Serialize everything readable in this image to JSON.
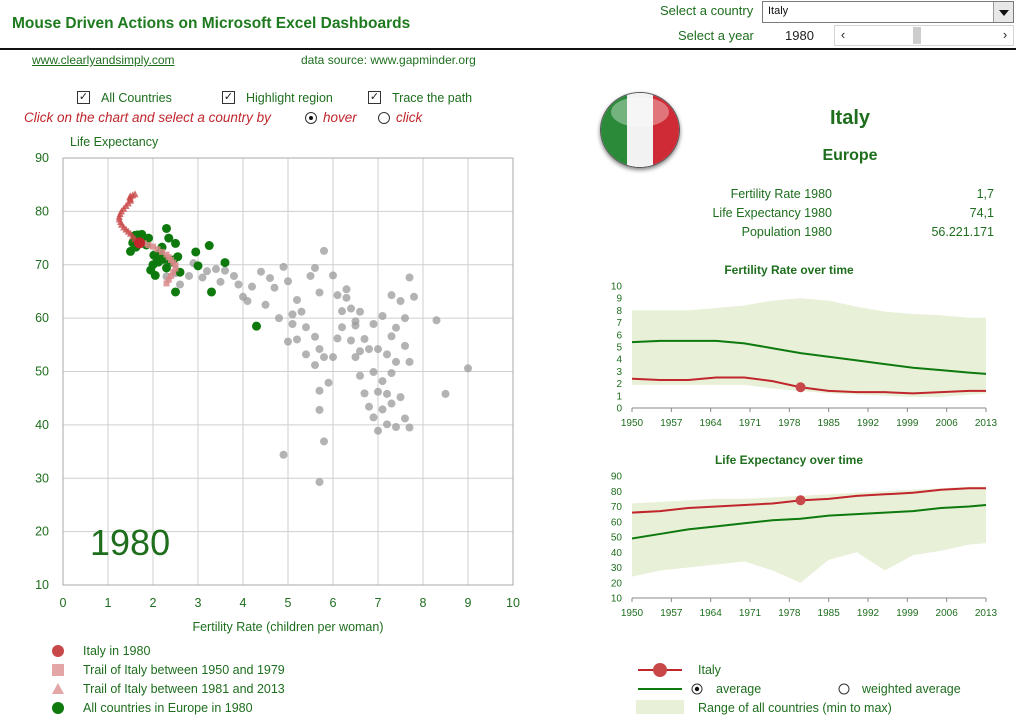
{
  "header": {
    "title": "Mouse Driven Actions on Microsoft Excel Dashboards",
    "select_country_label": "Select a country",
    "select_country_value": "Italy",
    "select_year_label": "Select a year",
    "select_year_value": "1980",
    "year_slider_position": 0.45
  },
  "links": {
    "site": "www.clearlyandsimply.com",
    "source": "data source: www.gapminder.org"
  },
  "options": {
    "all_countries": {
      "label": "All Countries",
      "checked": true
    },
    "highlight_region": {
      "label": "Highlight region",
      "checked": true
    },
    "trace_path": {
      "label": "Trace the path",
      "checked": true
    },
    "instruction": "Click on the chart and select a country by",
    "hover_label": "hover",
    "click_label": "click",
    "selected_mode": "hover"
  },
  "info": {
    "country": "Italy",
    "region": "Europe",
    "stats": [
      {
        "label": "Fertility Rate 1980",
        "value": "1,7"
      },
      {
        "label": "Life Expectancy 1980",
        "value": "74,1"
      },
      {
        "label": "Population 1980",
        "value": "56.221.171"
      }
    ]
  },
  "colors": {
    "accent_green": "#1e7a1e",
    "italy_red": "#c0262c",
    "europe_green": "#0e7a0e",
    "grey_dots": "#9a9a9a",
    "range_fill": "#e8f0d8"
  },
  "legend_main": {
    "items": [
      "Italy in 1980",
      "Trail of Italy between 1950 and 1979",
      "Trail of Italy between 1981 and 2013",
      "All countries in Europe in 1980"
    ]
  },
  "legend_small": {
    "italy": "Italy",
    "average": "average",
    "weighted_average": "weighted average",
    "range": "Range of all countries (min to max)",
    "selected": "average"
  },
  "chart_data": [
    {
      "type": "scatter",
      "title": "",
      "big_year_label": "1980",
      "xlabel": "Fertility Rate (children per woman)",
      "ylabel": "Life Expectancy",
      "xlim": [
        0,
        10
      ],
      "ylim": [
        10,
        90
      ],
      "xticks": [
        "0",
        "1",
        "2",
        "3",
        "4",
        "5",
        "6",
        "7",
        "8",
        "9",
        "10"
      ],
      "yticks": [
        "10",
        "20",
        "30",
        "40",
        "50",
        "60",
        "70",
        "80",
        "90"
      ],
      "grid": true,
      "series": [
        {
          "name": "Italy in 1980",
          "points": [
            [
              1.7,
              74.1
            ]
          ]
        },
        {
          "name": "Trail of Italy between 1950 and 1979",
          "points": [
            [
              2.3,
              66.5
            ],
            [
              2.35,
              67.2
            ],
            [
              2.4,
              67.9
            ],
            [
              2.45,
              68.6
            ],
            [
              2.5,
              69.3
            ],
            [
              2.5,
              69.9
            ],
            [
              2.45,
              70.4
            ],
            [
              2.4,
              70.9
            ],
            [
              2.35,
              71.4
            ],
            [
              2.3,
              71.9
            ],
            [
              2.2,
              72.4
            ],
            [
              2.1,
              72.9
            ],
            [
              2.0,
              73.4
            ],
            [
              1.9,
              73.7
            ],
            [
              1.8,
              74.0
            ]
          ]
        },
        {
          "name": "Trail of Italy between 1981 and 2013",
          "points": [
            [
              1.65,
              74.4
            ],
            [
              1.6,
              74.8
            ],
            [
              1.55,
              75.3
            ],
            [
              1.5,
              75.8
            ],
            [
              1.45,
              76.2
            ],
            [
              1.4,
              76.6
            ],
            [
              1.35,
              77.0
            ],
            [
              1.3,
              77.5
            ],
            [
              1.28,
              78.0
            ],
            [
              1.25,
              78.5
            ],
            [
              1.25,
              79.0
            ],
            [
              1.27,
              79.5
            ],
            [
              1.3,
              80.0
            ],
            [
              1.35,
              80.5
            ],
            [
              1.4,
              81.0
            ],
            [
              1.45,
              81.5
            ],
            [
              1.5,
              82.0
            ],
            [
              1.5,
              82.3
            ],
            [
              1.48,
              82.6
            ],
            [
              1.5,
              82.8
            ],
            [
              1.55,
              83.0
            ],
            [
              1.6,
              83.2
            ]
          ]
        },
        {
          "name": "All countries in Europe in 1980",
          "points": [
            [
              1.5,
              72.5
            ],
            [
              1.55,
              74.1
            ],
            [
              1.6,
              75.5
            ],
            [
              1.62,
              73.3
            ],
            [
              1.66,
              75.6
            ],
            [
              1.7,
              75.2
            ],
            [
              1.75,
              75.7
            ],
            [
              1.8,
              74.5
            ],
            [
              1.85,
              73.7
            ],
            [
              1.9,
              75.0
            ],
            [
              1.95,
              69.0
            ],
            [
              2.0,
              70.0
            ],
            [
              2.02,
              71.8
            ],
            [
              2.05,
              68.0
            ],
            [
              2.1,
              71.0
            ],
            [
              2.12,
              70.5
            ],
            [
              2.15,
              72.2
            ],
            [
              2.2,
              73.3
            ],
            [
              2.25,
              71.0
            ],
            [
              2.3,
              76.8
            ],
            [
              2.3,
              69.4
            ],
            [
              2.35,
              75.0
            ],
            [
              2.4,
              70.5
            ],
            [
              2.45,
              70.9
            ],
            [
              2.5,
              74.0
            ],
            [
              2.5,
              64.9
            ],
            [
              2.55,
              71.5
            ],
            [
              2.6,
              68.6
            ],
            [
              2.95,
              72.4
            ],
            [
              3.0,
              69.8
            ],
            [
              3.25,
              73.6
            ],
            [
              3.3,
              64.9
            ],
            [
              3.6,
              70.4
            ],
            [
              4.3,
              58.5
            ]
          ]
        },
        {
          "name": "All countries",
          "points": [
            [
              2.3,
              67.8
            ],
            [
              2.5,
              68.4
            ],
            [
              2.6,
              66.3
            ],
            [
              2.8,
              67.9
            ],
            [
              2.9,
              70.3
            ],
            [
              3.1,
              67.6
            ],
            [
              3.2,
              68.8
            ],
            [
              3.4,
              69.2
            ],
            [
              3.5,
              66.8
            ],
            [
              3.6,
              68.9
            ],
            [
              3.8,
              67.9
            ],
            [
              3.9,
              66.3
            ],
            [
              4.0,
              64.0
            ],
            [
              4.1,
              63.2
            ],
            [
              4.2,
              65.9
            ],
            [
              4.4,
              68.7
            ],
            [
              4.5,
              62.5
            ],
            [
              4.6,
              67.5
            ],
            [
              4.7,
              65.7
            ],
            [
              4.8,
              60.0
            ],
            [
              4.9,
              69.6
            ],
            [
              5.0,
              66.9
            ],
            [
              5.1,
              58.9
            ],
            [
              5.2,
              63.4
            ],
            [
              5.3,
              61.2
            ],
            [
              5.4,
              58.3
            ],
            [
              5.5,
              67.9
            ],
            [
              5.6,
              69.4
            ],
            [
              5.7,
              64.8
            ],
            [
              5.8,
              72.6
            ],
            [
              5.6,
              56.5
            ],
            [
              5.7,
              54.2
            ],
            [
              5.8,
              52.7
            ],
            [
              5.6,
              51.2
            ],
            [
              5.9,
              47.9
            ],
            [
              5.7,
              46.4
            ],
            [
              5.7,
              42.8
            ],
            [
              5.8,
              36.9
            ],
            [
              5.1,
              60.7
            ],
            [
              5.2,
              56.0
            ],
            [
              5.4,
              53.2
            ],
            [
              5.0,
              55.6
            ],
            [
              6.0,
              68.0
            ],
            [
              6.1,
              64.3
            ],
            [
              6.2,
              61.3
            ],
            [
              6.2,
              58.3
            ],
            [
              6.3,
              63.8
            ],
            [
              6.4,
              55.8
            ],
            [
              6.5,
              59.4
            ],
            [
              6.5,
              52.7
            ],
            [
              6.6,
              61.2
            ],
            [
              6.6,
              49.2
            ],
            [
              6.7,
              56.1
            ],
            [
              6.7,
              45.9
            ],
            [
              6.8,
              54.2
            ],
            [
              6.8,
              43.4
            ],
            [
              6.9,
              58.9
            ],
            [
              6.9,
              41.4
            ],
            [
              7.0,
              54.2
            ],
            [
              7.0,
              46.2
            ],
            [
              7.0,
              38.9
            ],
            [
              7.1,
              60.4
            ],
            [
              7.1,
              48.2
            ],
            [
              7.1,
              42.9
            ],
            [
              7.2,
              53.2
            ],
            [
              7.2,
              45.8
            ],
            [
              7.2,
              40.1
            ],
            [
              7.3,
              64.3
            ],
            [
              7.3,
              56.6
            ],
            [
              7.3,
              49.7
            ],
            [
              7.3,
              44.0
            ],
            [
              7.4,
              58.2
            ],
            [
              7.4,
              51.8
            ],
            [
              7.4,
              39.6
            ],
            [
              7.5,
              63.2
            ],
            [
              7.5,
              45.2
            ],
            [
              7.6,
              60.0
            ],
            [
              7.6,
              41.2
            ],
            [
              7.7,
              67.6
            ],
            [
              7.7,
              51.8
            ],
            [
              7.7,
              39.5
            ],
            [
              7.8,
              64.0
            ],
            [
              6.3,
              65.4
            ],
            [
              6.1,
              56.2
            ],
            [
              6.4,
              61.8
            ],
            [
              6.6,
              53.8
            ],
            [
              6.9,
              49.9
            ],
            [
              7.6,
              54.8
            ],
            [
              6.0,
              52.7
            ],
            [
              6.5,
              58.6
            ],
            [
              8.3,
              59.6
            ],
            [
              8.5,
              45.8
            ],
            [
              9.0,
              50.6
            ],
            [
              4.9,
              34.4
            ],
            [
              5.7,
              29.3
            ]
          ]
        }
      ]
    },
    {
      "type": "line",
      "title": "Fertility Rate over time",
      "x_ticks": [
        "1950",
        "1957",
        "1964",
        "1971",
        "1978",
        "1985",
        "1992",
        "1999",
        "2006",
        "2013"
      ],
      "ylim": [
        0,
        10
      ],
      "yticks": [
        "0",
        "1",
        "2",
        "3",
        "4",
        "5",
        "6",
        "7",
        "8",
        "9",
        "10"
      ],
      "x": [
        1950,
        1955,
        1960,
        1965,
        1970,
        1975,
        1980,
        1985,
        1990,
        1995,
        2000,
        2005,
        2010,
        2013
      ],
      "series": [
        {
          "name": "Italy",
          "values": [
            2.4,
            2.3,
            2.3,
            2.5,
            2.5,
            2.2,
            1.7,
            1.4,
            1.3,
            1.3,
            1.2,
            1.3,
            1.4,
            1.4
          ]
        },
        {
          "name": "average",
          "values": [
            5.4,
            5.5,
            5.5,
            5.5,
            5.3,
            4.9,
            4.5,
            4.2,
            3.9,
            3.6,
            3.3,
            3.1,
            2.9,
            2.8
          ]
        },
        {
          "name": "Range of all countries (min to max)",
          "min": [
            1.9,
            1.9,
            1.9,
            1.9,
            1.9,
            1.6,
            1.4,
            1.2,
            1.1,
            1.0,
            0.9,
            0.9,
            1.1,
            1.2
          ],
          "max": [
            8.0,
            8.0,
            8.0,
            8.2,
            8.4,
            8.8,
            9.0,
            8.8,
            8.3,
            7.9,
            7.7,
            7.6,
            7.4,
            7.4
          ]
        }
      ],
      "highlight": {
        "x": 1980,
        "y": 1.7
      }
    },
    {
      "type": "line",
      "title": "Life Expectancy over time",
      "x_ticks": [
        "1950",
        "1957",
        "1964",
        "1971",
        "1978",
        "1985",
        "1992",
        "1999",
        "2006",
        "2013"
      ],
      "ylim": [
        10,
        90
      ],
      "yticks": [
        "10",
        "20",
        "30",
        "40",
        "50",
        "60",
        "70",
        "80",
        "90"
      ],
      "x": [
        1950,
        1955,
        1960,
        1965,
        1970,
        1975,
        1980,
        1985,
        1990,
        1995,
        2000,
        2005,
        2010,
        2013
      ],
      "series": [
        {
          "name": "Italy",
          "values": [
            66,
            67,
            69,
            70,
            71,
            72,
            74,
            75,
            77,
            78,
            79,
            81,
            82,
            82
          ]
        },
        {
          "name": "average",
          "values": [
            49,
            52,
            55,
            57,
            59,
            61,
            62,
            64,
            65,
            66,
            67,
            69,
            70,
            71
          ]
        },
        {
          "name": "Range of all countries (min to max)",
          "min": [
            24,
            28,
            30,
            32,
            34,
            28,
            20,
            35,
            40,
            28,
            38,
            41,
            45,
            46
          ],
          "max": [
            72,
            73,
            74,
            75,
            75,
            76,
            77,
            78,
            79,
            80,
            81,
            82,
            83,
            83
          ]
        }
      ],
      "highlight": {
        "x": 1980,
        "y": 74.1
      }
    }
  ]
}
